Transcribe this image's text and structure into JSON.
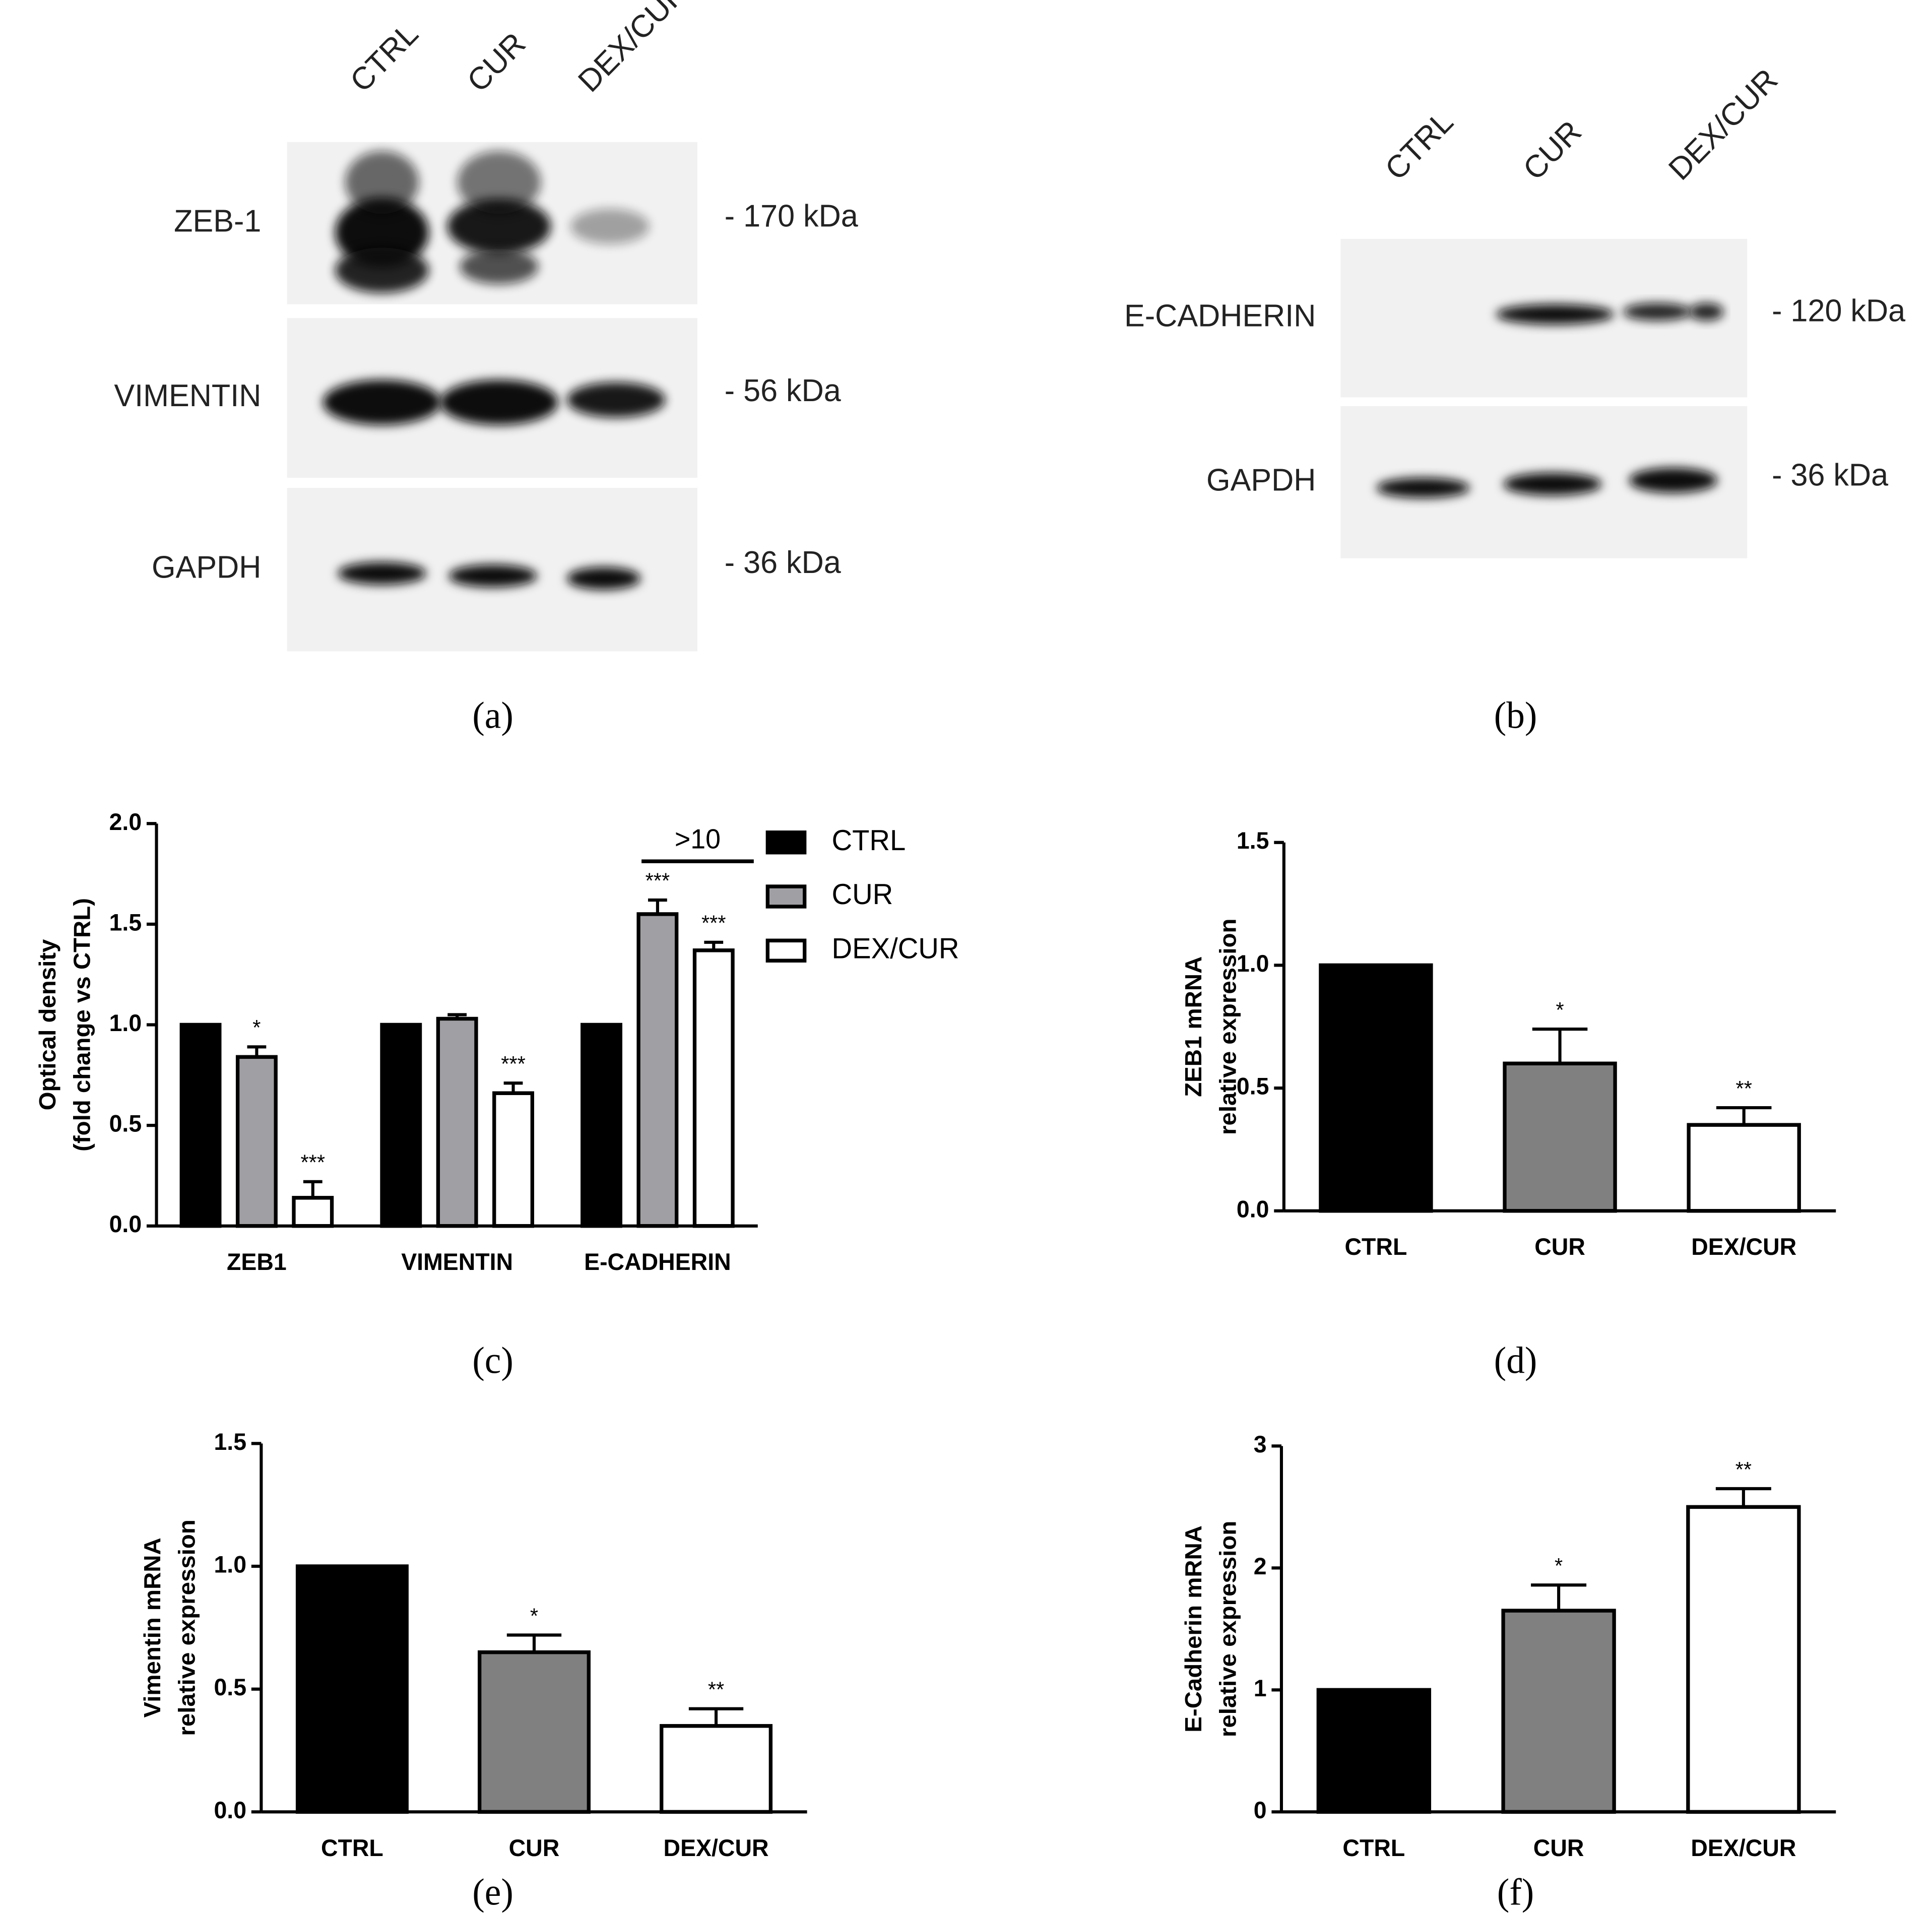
{
  "blots": [
    {
      "panel": "(a)",
      "lanes": [
        "CTRL",
        "CUR",
        "DEX/CUR"
      ],
      "rows": [
        {
          "label": "ZEB-1",
          "size": "- 170 kDa"
        },
        {
          "label": "VIMENTIN",
          "size": "- 56 kDa"
        },
        {
          "label": "GAPDH",
          "size": "- 36 kDa"
        }
      ]
    },
    {
      "panel": "(b)",
      "lanes": [
        "CTRL",
        "CUR",
        "DEX/CUR"
      ],
      "rows": [
        {
          "label": "E-CADHERIN",
          "size": "- 120 kDa"
        },
        {
          "label": "GAPDH",
          "size": "- 36 kDa"
        }
      ]
    }
  ],
  "chart_data": [
    {
      "type": "bar",
      "panel": "(c)",
      "ylabel": [
        "Optical density",
        "(fold change vs CTRL)"
      ],
      "categories": [
        "ZEB1",
        "VIMENTIN",
        "E-CADHERIN"
      ],
      "series": [
        {
          "name": "CTRL",
          "color": "#000000",
          "values": [
            1,
            1,
            1
          ]
        },
        {
          "name": "CUR",
          "color": "#a0a0a4",
          "values": [
            0.84,
            1.03,
            1.55
          ],
          "errors": [
            0.05,
            0.02,
            0.07
          ],
          "significance": [
            "*",
            null,
            "***"
          ]
        },
        {
          "name": "DEX/CUR",
          "color": "#ffffff",
          "values": [
            0.14,
            0.66,
            1.37
          ],
          "errors": [
            0.08,
            0.05,
            0.04
          ],
          "significance": [
            "***",
            "***",
            "***"
          ]
        }
      ],
      "annotation": ">10",
      "legend": "right",
      "ylim": [
        0,
        2
      ],
      "yticks": [
        {
          "value": 0,
          "label": "0.0"
        },
        {
          "value": 0.5,
          "label": "0.5"
        },
        {
          "value": 1,
          "label": "1.0"
        },
        {
          "value": 1.5,
          "label": "1.5"
        },
        {
          "value": 2,
          "label": "2.0"
        }
      ]
    },
    {
      "type": "bar",
      "panel": "(d)",
      "ylabel": [
        "ZEB1 mRNA",
        "relative expression"
      ],
      "categories": [
        "CTRL",
        "CUR",
        "DEX/CUR"
      ],
      "values": [
        1,
        0.6,
        0.35
      ],
      "errors": [
        null,
        0.14,
        0.07
      ],
      "significance": [
        null,
        "*",
        "**"
      ],
      "colors": [
        "#000000",
        "#808080",
        "#ffffff"
      ],
      "ylim": [
        0,
        1.5
      ],
      "yticks": [
        {
          "value": 0,
          "label": "0.0"
        },
        {
          "value": 0.5,
          "label": "0.5"
        },
        {
          "value": 1,
          "label": "1.0"
        },
        {
          "value": 1.5,
          "label": "1.5"
        }
      ]
    },
    {
      "type": "bar",
      "panel": "(e)",
      "ylabel": [
        "Vimentin mRNA",
        "relative expression"
      ],
      "categories": [
        "CTRL",
        "CUR",
        "DEX/CUR"
      ],
      "values": [
        1,
        0.65,
        0.35
      ],
      "errors": [
        null,
        0.07,
        0.07
      ],
      "significance": [
        null,
        "*",
        "**"
      ],
      "colors": [
        "#000000",
        "#808080",
        "#ffffff"
      ],
      "ylim": [
        0,
        1.5
      ],
      "yticks": [
        {
          "value": 0,
          "label": "0.0"
        },
        {
          "value": 0.5,
          "label": "0.5"
        },
        {
          "value": 1,
          "label": "1.0"
        },
        {
          "value": 1.5,
          "label": "1.5"
        }
      ]
    },
    {
      "type": "bar",
      "panel": "(f)",
      "ylabel": [
        "E-Cadherin mRNA",
        "relative expression"
      ],
      "categories": [
        "CTRL",
        "CUR",
        "DEX/CUR"
      ],
      "values": [
        1,
        1.65,
        2.5
      ],
      "errors": [
        null,
        0.21,
        0.15
      ],
      "significance": [
        null,
        "*",
        "**"
      ],
      "colors": [
        "#000000",
        "#808080",
        "#ffffff"
      ],
      "ylim": [
        0,
        3
      ],
      "yticks": [
        0,
        1,
        2,
        3
      ]
    }
  ]
}
